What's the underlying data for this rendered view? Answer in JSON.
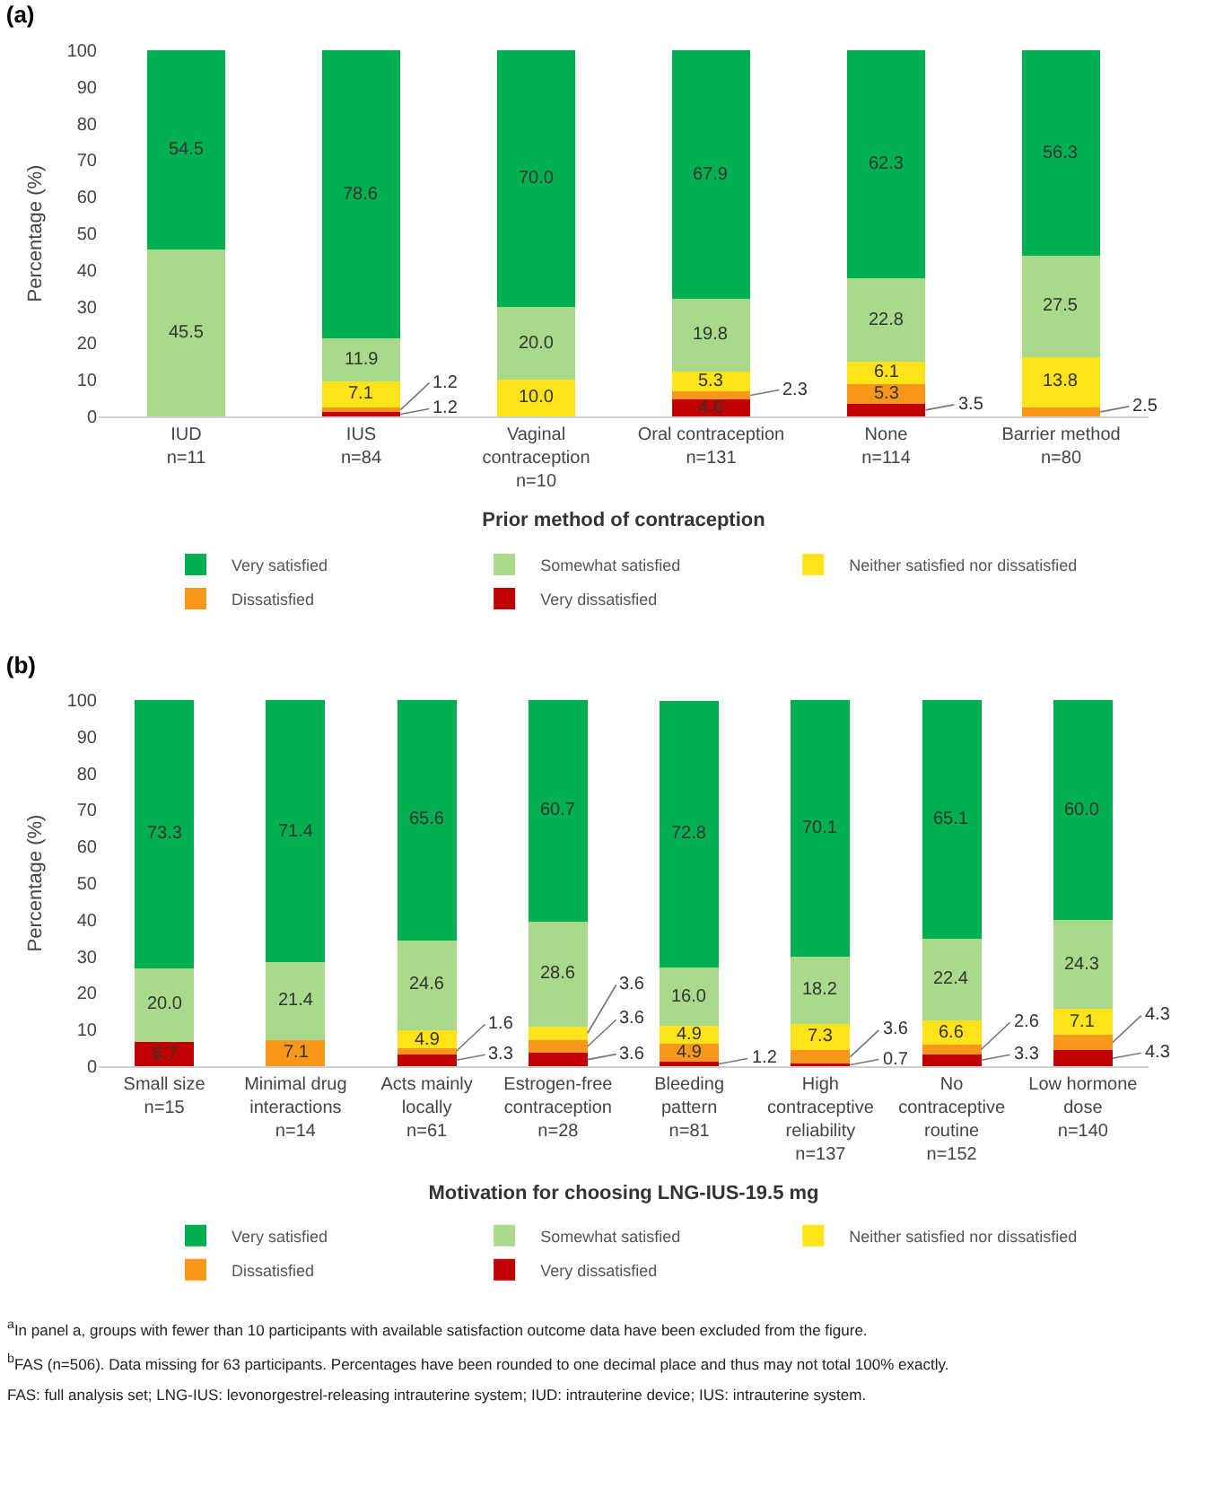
{
  "chart_data": [
    {
      "type": "bar",
      "title": "(a)",
      "xlabel": "Prior method of contraception",
      "ylabel": "Percentage (%)",
      "stacked": true,
      "grid": false,
      "legend": "bottom",
      "categories": [
        "IUD\nn=11",
        "IUS\nn=84",
        "Vaginal\ncontraception\nn=10",
        "Oral contraception\nn=131",
        "None\nn=114",
        "Barrier method\nn=80"
      ],
      "ylim": [
        0,
        100
      ],
      "yticks": [
        0,
        10,
        20,
        30,
        40,
        50,
        60,
        70,
        80,
        90,
        100
      ],
      "series": [
        {
          "name": "Very dissatisfied",
          "color": "#c00000",
          "values": [
            null,
            1.2,
            null,
            4.6,
            3.5,
            null
          ],
          "value_labels": [
            null,
            "1.2",
            null,
            "4.6",
            "3.5",
            null
          ]
        },
        {
          "name": "Dissatisfied",
          "color": "#f7981d",
          "values": [
            null,
            1.2,
            null,
            2.3,
            5.3,
            2.5
          ],
          "value_labels": [
            null,
            "1.2",
            null,
            "2.3",
            "5.3",
            "2.5"
          ]
        },
        {
          "name": "Neither satisfied nor dissatisfied",
          "color": "#ffe31a",
          "values": [
            null,
            7.1,
            10.0,
            5.3,
            6.1,
            13.8
          ],
          "value_labels": [
            null,
            "7.1",
            "10.0",
            "5.3",
            "6.1",
            "13.8"
          ]
        },
        {
          "name": "Somewhat satisfied",
          "color": "#a9d98a",
          "values": [
            45.5,
            11.9,
            20.0,
            19.8,
            22.8,
            27.5
          ],
          "value_labels": [
            "45.5",
            "11.9",
            "20.0",
            "19.8",
            "22.8",
            "27.5"
          ]
        },
        {
          "name": "Very satisfied",
          "color": "#00b050",
          "values": [
            54.5,
            78.6,
            70.0,
            67.9,
            62.3,
            56.3
          ],
          "value_labels": [
            "54.5",
            "78.6",
            "70.0",
            "67.9",
            "62.3",
            "56.3"
          ]
        }
      ]
    },
    {
      "type": "bar",
      "title": "(b)",
      "xlabel": "Motivation for choosing LNG-IUS-19.5 mg",
      "ylabel": "Percentage (%)",
      "stacked": true,
      "grid": false,
      "legend": "bottom",
      "categories": [
        "Small size\nn=15",
        "Minimal drug\ninteractions\nn=14",
        "Acts mainly\nlocally\nn=61",
        "Estrogen-free\ncontraception\nn=28",
        "Bleeding\npattern\nn=81",
        "High\ncontraceptive\nreliability\nn=137",
        "No\ncontraceptive\nroutine\nn=152",
        "Low hormone\ndose\nn=140"
      ],
      "ylim": [
        0,
        100
      ],
      "yticks": [
        0,
        10,
        20,
        30,
        40,
        50,
        60,
        70,
        80,
        90,
        100
      ],
      "series": [
        {
          "name": "Very dissatisfied",
          "color": "#c00000",
          "values": [
            6.7,
            null,
            3.3,
            3.6,
            1.2,
            0.7,
            3.3,
            4.3
          ],
          "value_labels": [
            "6.7",
            null,
            "3.3",
            "3.6",
            "1.2",
            "0.7",
            "3.3",
            "4.3"
          ]
        },
        {
          "name": "Dissatisfied",
          "color": "#f7981d",
          "values": [
            null,
            7.1,
            1.6,
            3.6,
            4.9,
            3.6,
            2.6,
            4.3
          ],
          "value_labels": [
            null,
            "7.1",
            "1.6",
            "3.6",
            "4.9",
            "3.6",
            "2.6",
            "4.3"
          ]
        },
        {
          "name": "Neither satisfied nor dissatisfied",
          "color": "#ffe31a",
          "values": [
            null,
            null,
            4.9,
            3.6,
            4.9,
            7.3,
            6.6,
            7.1
          ],
          "value_labels": [
            null,
            null,
            "4.9",
            "3.6",
            "4.9",
            "7.3",
            "6.6",
            "7.1"
          ]
        },
        {
          "name": "Somewhat satisfied",
          "color": "#a9d98a",
          "values": [
            20.0,
            21.4,
            24.6,
            28.6,
            16.0,
            18.2,
            22.4,
            24.3
          ],
          "value_labels": [
            "20.0",
            "21.4",
            "24.6",
            "28.6",
            "16.0",
            "18.2",
            "22.4",
            "24.3"
          ]
        },
        {
          "name": "Very satisfied",
          "color": "#00b050",
          "values": [
            73.3,
            71.4,
            65.6,
            60.7,
            72.8,
            70.1,
            65.1,
            60.0
          ],
          "value_labels": [
            "73.3",
            "71.4",
            "65.6",
            "60.7",
            "72.8",
            "70.1",
            "65.1",
            "60.0"
          ]
        }
      ],
      "annotations": [
        "$^{a}$In panel a, groups with fewer than 10 participants with available satisfaction outcome data have been excluded from the figure.",
        "$^{b}$FAS (n=506). Data missing for 63 participants. Percentages have been rounded to one decimal place and thus may not total 100% exactly.",
        "FAS: full analysis set; LNG-IUS: levonorgestrel-releasing intrauterine system; IUD: intrauterine device; IUS: intrauterine system."
      ]
    }
  ]
}
